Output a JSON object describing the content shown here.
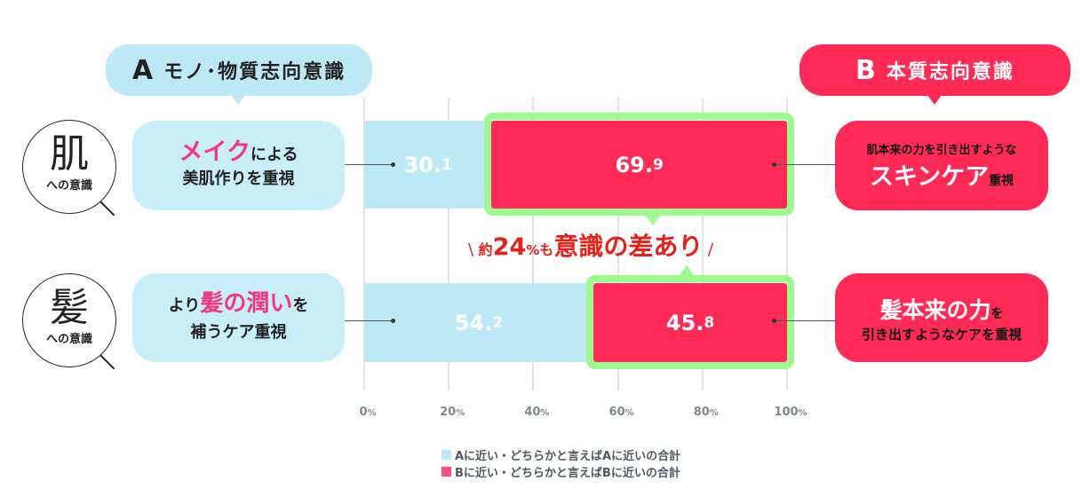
{
  "colors": {
    "a": "#bde9f7",
    "b": "#ff2a55",
    "highlight": "#9dfa8f",
    "accent_text": "#f7357f",
    "annotation": "#e8201a"
  },
  "header_a": {
    "letter": "A",
    "label": "モノ･物質志向意識"
  },
  "header_b": {
    "letter": "B",
    "label": "本質志向意識"
  },
  "rows": [
    {
      "circle_kanji": "肌",
      "circle_sub": "への意識",
      "a_text": {
        "accent": "メイク",
        "rest1": "による",
        "line2": "美肌作りを重視"
      },
      "b_text": {
        "line1": "肌本来の力を引き出すような",
        "big": "スキンケア",
        "small": "重視"
      },
      "a_int": "30.",
      "a_dec": "1",
      "b_int": "69.",
      "b_dec": "9"
    },
    {
      "circle_kanji": "髪",
      "circle_sub": "への意識",
      "a_text": {
        "pre": "より",
        "accent": "髪の潤い",
        "post": "を",
        "line2": "補うケア重視"
      },
      "b_text": {
        "big": "髪本来の力",
        "small": "を",
        "line2": "引き出すようなケアを重視"
      },
      "a_int": "54.",
      "a_dec": "2",
      "b_int": "45.",
      "b_dec": "8"
    }
  ],
  "annotation": {
    "open": "\\",
    "pre": "約",
    "num": "24",
    "pct": "%",
    "mo": "も",
    "main": "意識の差あり",
    "close": "/"
  },
  "chart_data": {
    "type": "bar",
    "stacked": true,
    "orientation": "horizontal",
    "categories": [
      "肌への意識",
      "髪への意識"
    ],
    "series": [
      {
        "name": "Aに近い・どちらかと言えばAに近いの合計",
        "values": [
          30.1,
          54.2
        ]
      },
      {
        "name": "Bに近い・どちらかと言えばBに近いの合計",
        "values": [
          69.9,
          45.8
        ]
      }
    ],
    "xlim": [
      0,
      100
    ],
    "ticks": [
      {
        "n": "0",
        "u": "%"
      },
      {
        "n": "20",
        "u": "%"
      },
      {
        "n": "40",
        "u": "%"
      },
      {
        "n": "60",
        "u": "%"
      },
      {
        "n": "80",
        "u": "%"
      },
      {
        "n": "100",
        "u": "%"
      }
    ],
    "grid": true,
    "legend_position": "bottom"
  },
  "legend": [
    "Aに近い・どちらかと言えばAに近いの合計",
    "Bに近い・どちらかと言えばBに近いの合計"
  ]
}
